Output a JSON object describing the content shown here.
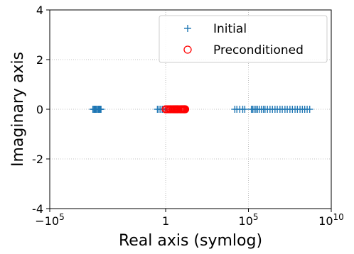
{
  "chart_data": {
    "type": "scatter",
    "title": "",
    "xlabel": "Real axis (symlog)",
    "ylabel": "Imaginary axis",
    "xscale": "symlog",
    "linthresh": 1,
    "xlim": [
      -100000,
      10000000000
    ],
    "ylim": [
      -4,
      4
    ],
    "xticks": [
      {
        "value": -100000,
        "base": "−10",
        "exp": "5"
      },
      {
        "value": 1,
        "base": "1",
        "exp": ""
      },
      {
        "value": 100000,
        "base": "10",
        "exp": "5"
      },
      {
        "value": 10000000000,
        "base": "10",
        "exp": "10"
      }
    ],
    "yticks": [
      {
        "value": -4,
        "label": "-4"
      },
      {
        "value": -2,
        "label": "-2"
      },
      {
        "value": 0,
        "label": "0"
      },
      {
        "value": 2,
        "label": "2"
      },
      {
        "value": 4,
        "label": "4"
      }
    ],
    "grid": true,
    "legend_position": "upper-right",
    "series": [
      {
        "name": "Initial",
        "marker": "plus",
        "color": "#1f77b4",
        "points": [
          {
            "x": -250,
            "y": 0
          },
          {
            "x": -220,
            "y": 0
          },
          {
            "x": -200,
            "y": 0
          },
          {
            "x": -180,
            "y": 0
          },
          {
            "x": -160,
            "y": 0
          },
          {
            "x": -140,
            "y": 0
          },
          {
            "x": -120,
            "y": 0
          },
          {
            "x": -110,
            "y": 0
          },
          {
            "x": -100,
            "y": 0
          },
          {
            "x": -90,
            "y": 0
          },
          {
            "x": -85,
            "y": 0
          },
          {
            "x": -80,
            "y": 0
          },
          {
            "x": 0.5,
            "y": 0
          },
          {
            "x": 0.6,
            "y": 0
          },
          {
            "x": 0.7,
            "y": 0
          },
          {
            "x": 0.8,
            "y": 0
          },
          {
            "x": 0.9,
            "y": 0
          },
          {
            "x": 1.0,
            "y": 0
          },
          {
            "x": 15000,
            "y": 0
          },
          {
            "x": 20000,
            "y": 0
          },
          {
            "x": 30000,
            "y": 0
          },
          {
            "x": 45000,
            "y": 0
          },
          {
            "x": 60000,
            "y": 0
          },
          {
            "x": 150000,
            "y": 0
          },
          {
            "x": 180000,
            "y": 0
          },
          {
            "x": 220000,
            "y": 0
          },
          {
            "x": 280000,
            "y": 0
          },
          {
            "x": 350000,
            "y": 0
          },
          {
            "x": 450000,
            "y": 0
          },
          {
            "x": 600000,
            "y": 0
          },
          {
            "x": 800000,
            "y": 0
          },
          {
            "x": 1000000,
            "y": 0
          },
          {
            "x": 1400000,
            "y": 0
          },
          {
            "x": 2000000,
            "y": 0
          },
          {
            "x": 2800000,
            "y": 0
          },
          {
            "x": 4000000,
            "y": 0
          },
          {
            "x": 5500000,
            "y": 0
          },
          {
            "x": 8000000,
            "y": 0
          },
          {
            "x": 11000000,
            "y": 0
          },
          {
            "x": 16000000,
            "y": 0
          },
          {
            "x": 22000000,
            "y": 0
          },
          {
            "x": 32000000,
            "y": 0
          },
          {
            "x": 45000000,
            "y": 0
          },
          {
            "x": 65000000,
            "y": 0
          },
          {
            "x": 90000000,
            "y": 0
          },
          {
            "x": 130000000,
            "y": 0
          },
          {
            "x": 180000000,
            "y": 0
          },
          {
            "x": 250000000,
            "y": 0
          },
          {
            "x": 350000000,
            "y": 0
          },
          {
            "x": 500000000,
            "y": 0
          }
        ]
      },
      {
        "name": "Preconditioned",
        "marker": "circle",
        "color": "#ff0000",
        "points": [
          {
            "x": 1.0,
            "y": 0
          },
          {
            "x": 1.2,
            "y": 0
          },
          {
            "x": 1.5,
            "y": 0
          },
          {
            "x": 1.8,
            "y": 0
          },
          {
            "x": 2.0,
            "y": 0
          },
          {
            "x": 2.4,
            "y": 0
          },
          {
            "x": 2.8,
            "y": 0
          },
          {
            "x": 3.2,
            "y": 0
          },
          {
            "x": 3.6,
            "y": 0
          },
          {
            "x": 4.0,
            "y": 0
          },
          {
            "x": 4.5,
            "y": 0
          },
          {
            "x": 5.0,
            "y": 0
          },
          {
            "x": 5.5,
            "y": 0
          },
          {
            "x": 6.0,
            "y": 0
          },
          {
            "x": 7.0,
            "y": 0
          },
          {
            "x": 8.0,
            "y": 0
          },
          {
            "x": 9.0,
            "y": 0
          },
          {
            "x": 10.0,
            "y": 0
          },
          {
            "x": 11.0,
            "y": 0
          },
          {
            "x": 12.0,
            "y": 0
          },
          {
            "x": 13.0,
            "y": 0
          },
          {
            "x": 14.0,
            "y": 0
          },
          {
            "x": 15.0,
            "y": 0
          }
        ]
      }
    ]
  }
}
